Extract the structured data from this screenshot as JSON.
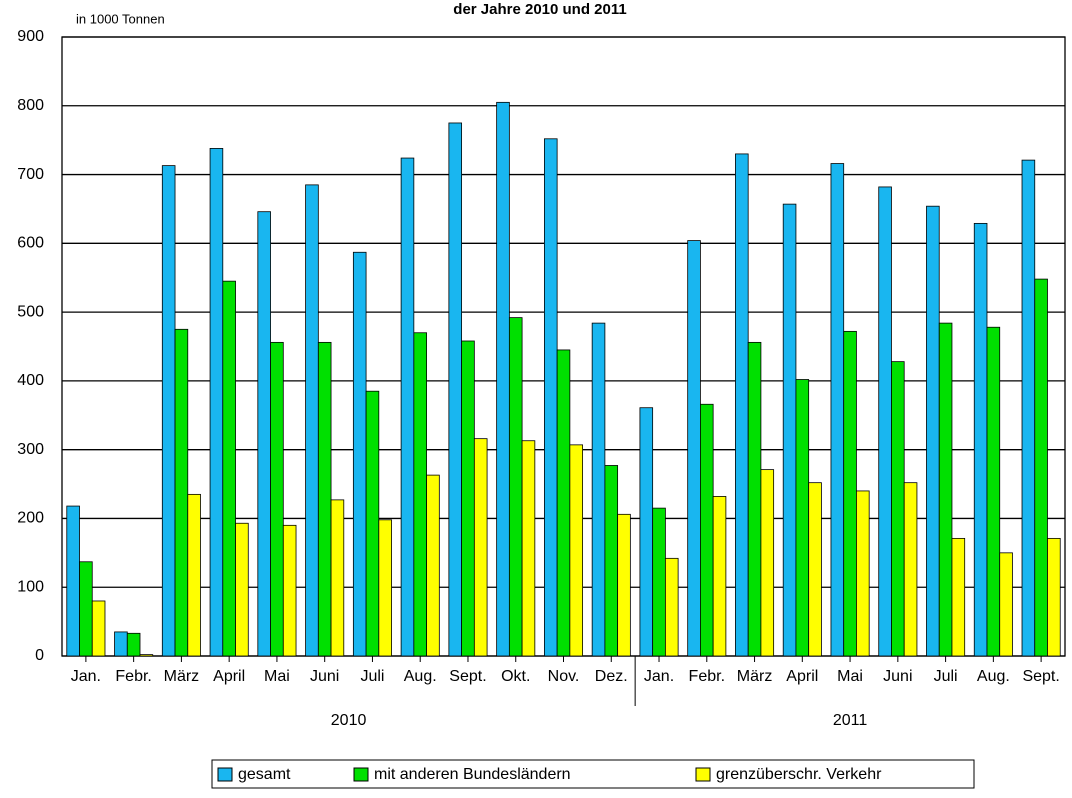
{
  "chart_data": {
    "type": "bar",
    "title": "der Jahre 2010 und 2011",
    "ylabel": "in 1000 Tonnen",
    "categories": [
      "Jan.",
      "Febr.",
      "März",
      "April",
      "Mai",
      "Juni",
      "Juli",
      "Aug.",
      "Sept.",
      "Okt.",
      "Nov.",
      "Dez.",
      "Jan.",
      "Febr.",
      "März",
      "April",
      "Mai",
      "Juni",
      "Juli",
      "Aug.",
      "Sept."
    ],
    "x_groups": [
      "2010",
      "2011"
    ],
    "series": [
      {
        "name": "gesamt",
        "color": "#19b6f0",
        "values": [
          218,
          35,
          713,
          738,
          646,
          685,
          587,
          724,
          775,
          805,
          752,
          484,
          361,
          604,
          730,
          657,
          716,
          682,
          654,
          629,
          721
        ]
      },
      {
        "name": "mit anderen Bundesländern",
        "color": "#00e000",
        "values": [
          137,
          33,
          475,
          545,
          456,
          456,
          385,
          470,
          458,
          492,
          445,
          277,
          215,
          366,
          456,
          402,
          472,
          428,
          484,
          478,
          548
        ]
      },
      {
        "name": "grenzüberschr. Verkehr",
        "color": "#ffff00",
        "values": [
          80,
          2,
          235,
          193,
          190,
          227,
          198,
          263,
          316,
          313,
          307,
          206,
          142,
          232,
          271,
          252,
          240,
          252,
          171,
          150,
          171
        ]
      }
    ],
    "ylim": [
      0,
      900
    ],
    "yticks": [
      0,
      100,
      200,
      300,
      400,
      500,
      600,
      700,
      800,
      900
    ],
    "grid": true,
    "legend": "bottom"
  }
}
